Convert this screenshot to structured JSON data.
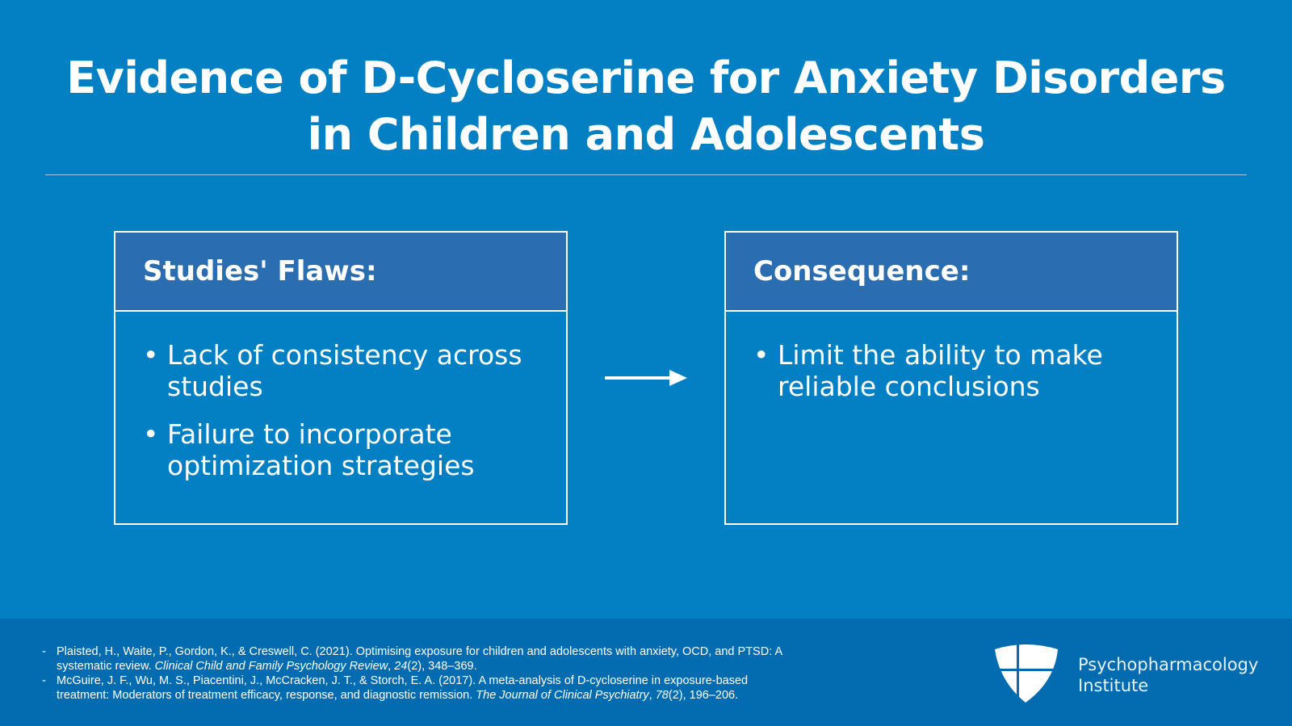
{
  "title": {
    "line1": "Evidence of D-Cycloserine for Anxiety Disorders",
    "line2": "in Children and Adolescents"
  },
  "left_box": {
    "heading": "Studies' Flaws:",
    "items": [
      "Lack of consistency across studies",
      "Failure to incorporate optimization strategies"
    ]
  },
  "right_box": {
    "heading": "Consequence:",
    "items": [
      "Limit the ability to make reliable conclusions"
    ]
  },
  "arrow_icon": "arrow-right",
  "references": [
    {
      "bullet": "-",
      "text": "Plaisted, H., Waite, P., Gordon, K., & Creswell, C. (2021). Optimising exposure for children and adolescents with anxiety, OCD, and PTSD: A systematic review. ",
      "journal": "Clinical Child and Family Psychology Review",
      "sep": ", ",
      "volume": "24",
      "rest": "(2), 348–369."
    },
    {
      "bullet": "-",
      "text": "McGuire, J. F., Wu, M. S., Piacentini, J., McCracken, J. T., & Storch, E. A. (2017). A meta-analysis of D-cycloserine in exposure-based treatment: Moderators of treatment efficacy, response, and diagnostic remission. ",
      "journal": "The Journal of Clinical Psychiatry",
      "sep": ", ",
      "volume": "78",
      "rest": "(2), 196–206."
    }
  ],
  "brand": {
    "line1": "Psychopharmacology",
    "line2": "Institute"
  },
  "colors": {
    "background": "#0280c3",
    "header": "#2a6db1",
    "footer": "#036cb1"
  }
}
